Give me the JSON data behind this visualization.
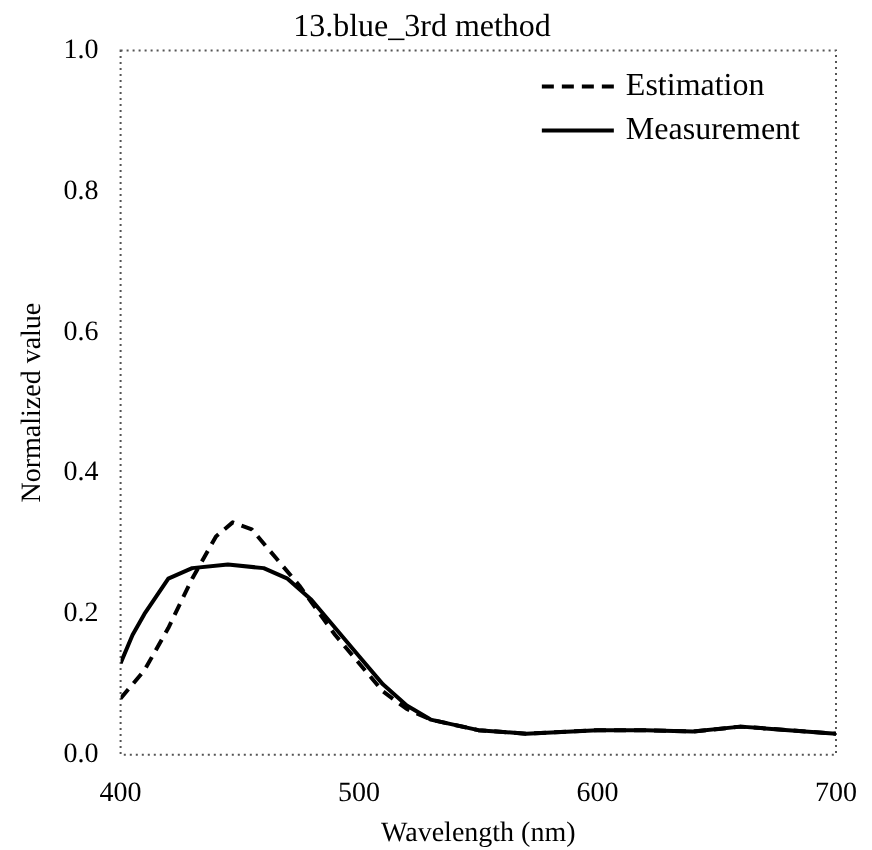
{
  "chart_data": {
    "type": "line",
    "title": "13.blue_3rd method",
    "xlabel": "Wavelength (nm)",
    "ylabel": "Normalized value",
    "xlim": [
      400,
      700
    ],
    "xticks": [
      400,
      500,
      600,
      700
    ],
    "ylim": [
      0,
      1
    ],
    "yticks": [
      {
        "value": 0,
        "label": "0.0"
      },
      {
        "value": 0.2,
        "label": "0.2"
      },
      {
        "value": 0.4,
        "label": "0.4"
      },
      {
        "value": 0.6,
        "label": "0.6"
      },
      {
        "value": 0.8,
        "label": "0.8"
      },
      {
        "value": 1,
        "label": "1.0"
      }
    ],
    "grid": false,
    "legend": "top right",
    "marker": "none",
    "series": [
      {
        "name": "Estimation",
        "color": "#000000",
        "line_style": "dashed",
        "x": [
          400,
          410,
          420,
          430,
          440,
          447,
          455,
          465,
          475,
          490,
          500,
          510,
          520,
          530,
          550,
          570,
          600,
          620,
          640,
          660,
          680,
          700
        ],
        "values": [
          0.08,
          0.12,
          0.18,
          0.25,
          0.31,
          0.33,
          0.32,
          0.28,
          0.24,
          0.17,
          0.13,
          0.09,
          0.065,
          0.05,
          0.035,
          0.03,
          0.035,
          0.035,
          0.033,
          0.04,
          0.035,
          0.03
        ]
      },
      {
        "name": "Measurement",
        "color": "#000000",
        "line_style": "solid",
        "x": [
          400,
          405,
          410,
          420,
          430,
          445,
          460,
          470,
          480,
          490,
          500,
          510,
          520,
          530,
          550,
          570,
          600,
          620,
          640,
          660,
          680,
          700
        ],
        "values": [
          0.13,
          0.17,
          0.2,
          0.25,
          0.265,
          0.27,
          0.265,
          0.25,
          0.22,
          0.18,
          0.14,
          0.1,
          0.07,
          0.05,
          0.035,
          0.03,
          0.035,
          0.035,
          0.033,
          0.04,
          0.035,
          0.03
        ]
      }
    ]
  }
}
